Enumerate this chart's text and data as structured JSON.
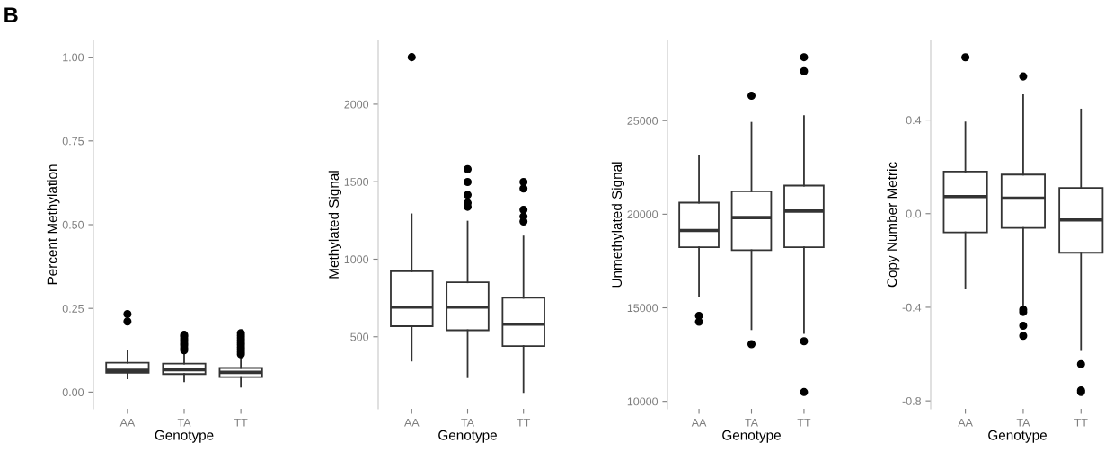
{
  "chart_data": [
    {
      "type": "box",
      "xlabel": "Genotype",
      "ylabel": "Percent Methylation",
      "annotations": [
        "B"
      ],
      "categories": [
        "AA",
        "TA",
        "TT"
      ],
      "boxes": [
        {
          "low": 0.041,
          "q1": 0.058,
          "median": 0.065,
          "q3": 0.088,
          "high": 0.123,
          "outliers": [
            0.211,
            0.233
          ]
        },
        {
          "low": 0.032,
          "q1": 0.054,
          "median": 0.067,
          "q3": 0.085,
          "high": 0.118,
          "outliers": [
            0.125,
            0.132,
            0.14,
            0.146,
            0.153,
            0.159,
            0.166,
            0.171
          ]
        },
        {
          "low": 0.016,
          "q1": 0.045,
          "median": 0.059,
          "q3": 0.072,
          "high": 0.106,
          "outliers": [
            0.113,
            0.12,
            0.127,
            0.134,
            0.141,
            0.148,
            0.155,
            0.162,
            0.169,
            0.176
          ]
        }
      ],
      "ylim": [
        -0.05,
        1.05
      ],
      "yticks": [
        {
          "value": 0,
          "label": "0.00"
        },
        {
          "value": 0.25,
          "label": "0.25"
        },
        {
          "value": 0.5,
          "label": "0.50"
        },
        {
          "value": 0.75,
          "label": "0.75"
        },
        {
          "value": 1,
          "label": "1.00"
        }
      ]
    },
    {
      "type": "box",
      "xlabel": "Genotype",
      "ylabel": "Methylated Signal",
      "categories": [
        "AA",
        "TA",
        "TT"
      ],
      "boxes": [
        {
          "low": 346,
          "q1": 568,
          "median": 691,
          "q3": 923,
          "high": 1290,
          "outliers": [
            2303
          ]
        },
        {
          "low": 239,
          "q1": 542,
          "median": 691,
          "q3": 851,
          "high": 1243,
          "outliers": [
            1338,
            1363,
            1415,
            1498,
            1581
          ]
        },
        {
          "low": 143,
          "q1": 440,
          "median": 581,
          "q3": 751,
          "high": 1147,
          "outliers": [
            1243,
            1276,
            1319,
            1456,
            1498
          ]
        }
      ],
      "ylim": [
        35,
        2411
      ],
      "yticks": [
        500,
        1000,
        1500,
        2000
      ]
    },
    {
      "type": "box",
      "xlabel": "Genotype",
      "ylabel": "Unmethylated Signal",
      "categories": [
        "AA",
        "TA",
        "TT"
      ],
      "boxes": [
        {
          "low": 15644,
          "q1": 18235,
          "median": 19130,
          "q3": 20617,
          "high": 23128,
          "outliers": [
            14253,
            14573
          ]
        },
        {
          "low": 13854,
          "q1": 18075,
          "median": 19818,
          "q3": 21225,
          "high": 24887,
          "outliers": [
            13054,
            26326
          ]
        },
        {
          "low": 13650,
          "q1": 18235,
          "median": 20170,
          "q3": 21529,
          "high": 25239,
          "outliers": [
            10496,
            13214,
            27636,
            28388
          ]
        }
      ],
      "ylim": [
        9600,
        29283
      ],
      "yticks": [
        10000,
        15000,
        20000,
        25000
      ]
    },
    {
      "type": "box",
      "xlabel": "Genotype",
      "ylabel": "Copy Number Metric",
      "categories": [
        "AA",
        "TA",
        "TT"
      ],
      "boxes": [
        {
          "low": -0.32,
          "q1": -0.08,
          "median": 0.073,
          "q3": 0.18,
          "high": 0.39,
          "outliers": [
            0.668
          ]
        },
        {
          "low": -0.399,
          "q1": -0.061,
          "median": 0.066,
          "q3": 0.167,
          "high": 0.506,
          "outliers": [
            -0.522,
            -0.479,
            -0.42,
            -0.41,
            0.586
          ]
        },
        {
          "low": -0.583,
          "q1": -0.167,
          "median": -0.027,
          "q3": 0.11,
          "high": 0.445,
          "outliers": [
            -0.762,
            -0.755,
            -0.643
          ]
        }
      ],
      "ylim": [
        -0.834,
        0.74
      ],
      "yticks": [
        {
          "value": -0.8,
          "label": "-0.8"
        },
        {
          "value": -0.4,
          "label": "-0.4"
        },
        {
          "value": 0,
          "label": "0.0"
        },
        {
          "value": 0.4,
          "label": "0.4"
        }
      ]
    }
  ]
}
